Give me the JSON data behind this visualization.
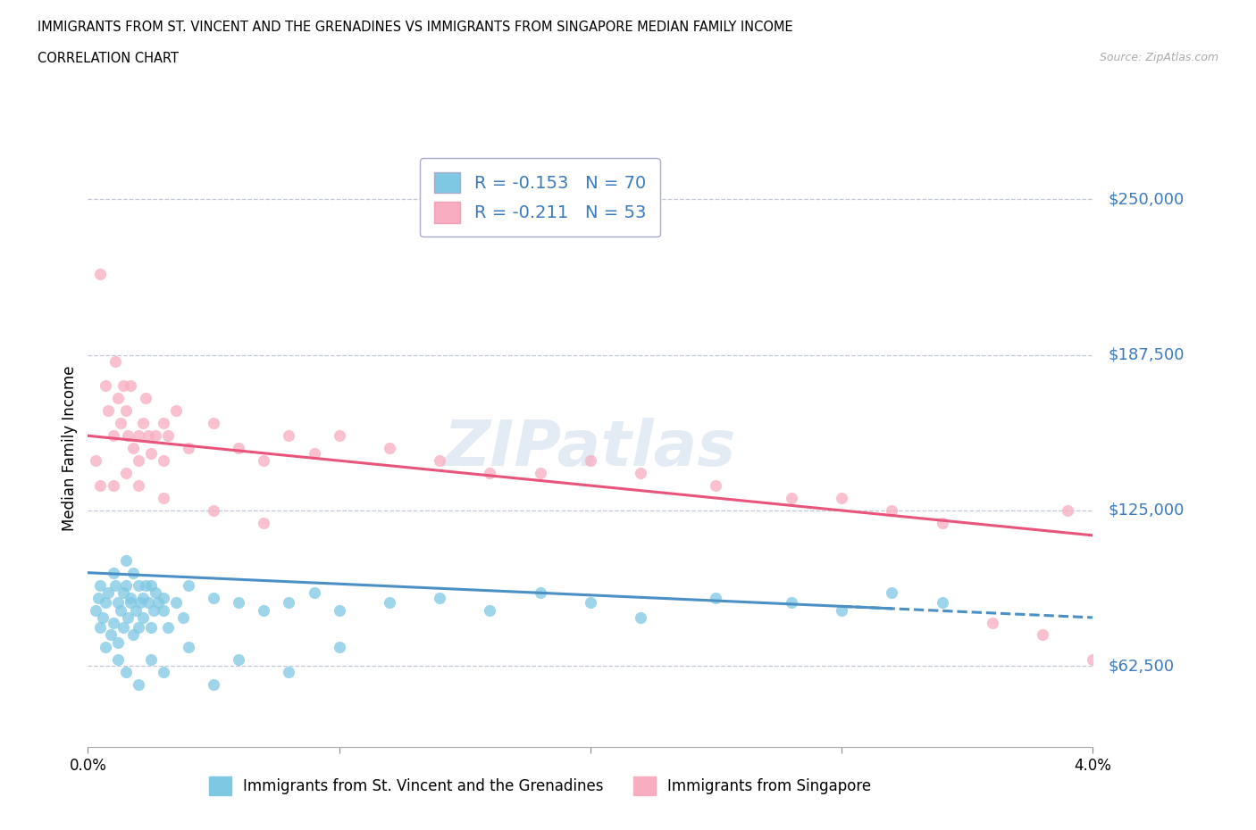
{
  "title_line1": "IMMIGRANTS FROM ST. VINCENT AND THE GRENADINES VS IMMIGRANTS FROM SINGAPORE MEDIAN FAMILY INCOME",
  "title_line2": "CORRELATION CHART",
  "source": "Source: ZipAtlas.com",
  "ylabel": "Median Family Income",
  "x_min": 0.0,
  "x_max": 0.04,
  "y_min": 30000,
  "y_max": 270000,
  "yticks": [
    62500,
    125000,
    187500,
    250000
  ],
  "ytick_labels": [
    "$62,500",
    "$125,000",
    "$187,500",
    "$250,000"
  ],
  "xticks": [
    0.0,
    0.01,
    0.02,
    0.03,
    0.04
  ],
  "xtick_labels": [
    "0.0%",
    "",
    "",
    "",
    "4.0%"
  ],
  "blue_R": -0.153,
  "blue_N": 70,
  "pink_R": -0.211,
  "pink_N": 53,
  "blue_color": "#7ec8e3",
  "pink_color": "#f8adc0",
  "blue_line_color": "#4a90c4",
  "pink_line_color": "#e8547a",
  "text_blue": "#3a7abf",
  "legend_label_blue": "Immigrants from St. Vincent and the Grenadines",
  "legend_label_pink": "Immigrants from Singapore",
  "watermark": "ZIPatlas",
  "grid_color": "#c0c8d8",
  "blue_scatter_x": [
    0.0003,
    0.0004,
    0.0005,
    0.0005,
    0.0006,
    0.0007,
    0.0007,
    0.0008,
    0.0009,
    0.001,
    0.001,
    0.0011,
    0.0012,
    0.0012,
    0.0013,
    0.0014,
    0.0014,
    0.0015,
    0.0015,
    0.0016,
    0.0017,
    0.0017,
    0.0018,
    0.0018,
    0.0019,
    0.002,
    0.002,
    0.0021,
    0.0022,
    0.0022,
    0.0023,
    0.0024,
    0.0025,
    0.0025,
    0.0026,
    0.0027,
    0.0028,
    0.003,
    0.003,
    0.0032,
    0.0035,
    0.0038,
    0.004,
    0.005,
    0.006,
    0.007,
    0.008,
    0.009,
    0.01,
    0.012,
    0.014,
    0.016,
    0.018,
    0.02,
    0.022,
    0.025,
    0.028,
    0.03,
    0.032,
    0.034,
    0.0012,
    0.0015,
    0.002,
    0.0025,
    0.003,
    0.004,
    0.005,
    0.006,
    0.008,
    0.01
  ],
  "blue_scatter_y": [
    85000,
    90000,
    78000,
    95000,
    82000,
    88000,
    70000,
    92000,
    75000,
    100000,
    80000,
    95000,
    88000,
    72000,
    85000,
    92000,
    78000,
    95000,
    105000,
    82000,
    90000,
    88000,
    75000,
    100000,
    85000,
    78000,
    95000,
    88000,
    82000,
    90000,
    95000,
    88000,
    78000,
    95000,
    85000,
    92000,
    88000,
    85000,
    90000,
    78000,
    88000,
    82000,
    95000,
    90000,
    88000,
    85000,
    88000,
    92000,
    85000,
    88000,
    90000,
    85000,
    92000,
    88000,
    82000,
    90000,
    88000,
    85000,
    92000,
    88000,
    65000,
    60000,
    55000,
    65000,
    60000,
    70000,
    55000,
    65000,
    60000,
    70000
  ],
  "pink_scatter_x": [
    0.0003,
    0.0005,
    0.0007,
    0.0008,
    0.001,
    0.0011,
    0.0012,
    0.0013,
    0.0014,
    0.0015,
    0.0016,
    0.0017,
    0.0018,
    0.002,
    0.002,
    0.0022,
    0.0023,
    0.0024,
    0.0025,
    0.0027,
    0.003,
    0.003,
    0.0032,
    0.0035,
    0.004,
    0.005,
    0.006,
    0.007,
    0.008,
    0.009,
    0.01,
    0.012,
    0.014,
    0.016,
    0.018,
    0.02,
    0.022,
    0.025,
    0.028,
    0.03,
    0.032,
    0.034,
    0.036,
    0.038,
    0.039,
    0.04,
    0.0005,
    0.001,
    0.0015,
    0.002,
    0.003,
    0.005,
    0.007
  ],
  "pink_scatter_y": [
    145000,
    220000,
    175000,
    165000,
    155000,
    185000,
    170000,
    160000,
    175000,
    165000,
    155000,
    175000,
    150000,
    155000,
    145000,
    160000,
    170000,
    155000,
    148000,
    155000,
    160000,
    145000,
    155000,
    165000,
    150000,
    160000,
    150000,
    145000,
    155000,
    148000,
    155000,
    150000,
    145000,
    140000,
    140000,
    145000,
    140000,
    135000,
    130000,
    130000,
    125000,
    120000,
    80000,
    75000,
    125000,
    65000,
    135000,
    135000,
    140000,
    135000,
    130000,
    125000,
    120000
  ]
}
